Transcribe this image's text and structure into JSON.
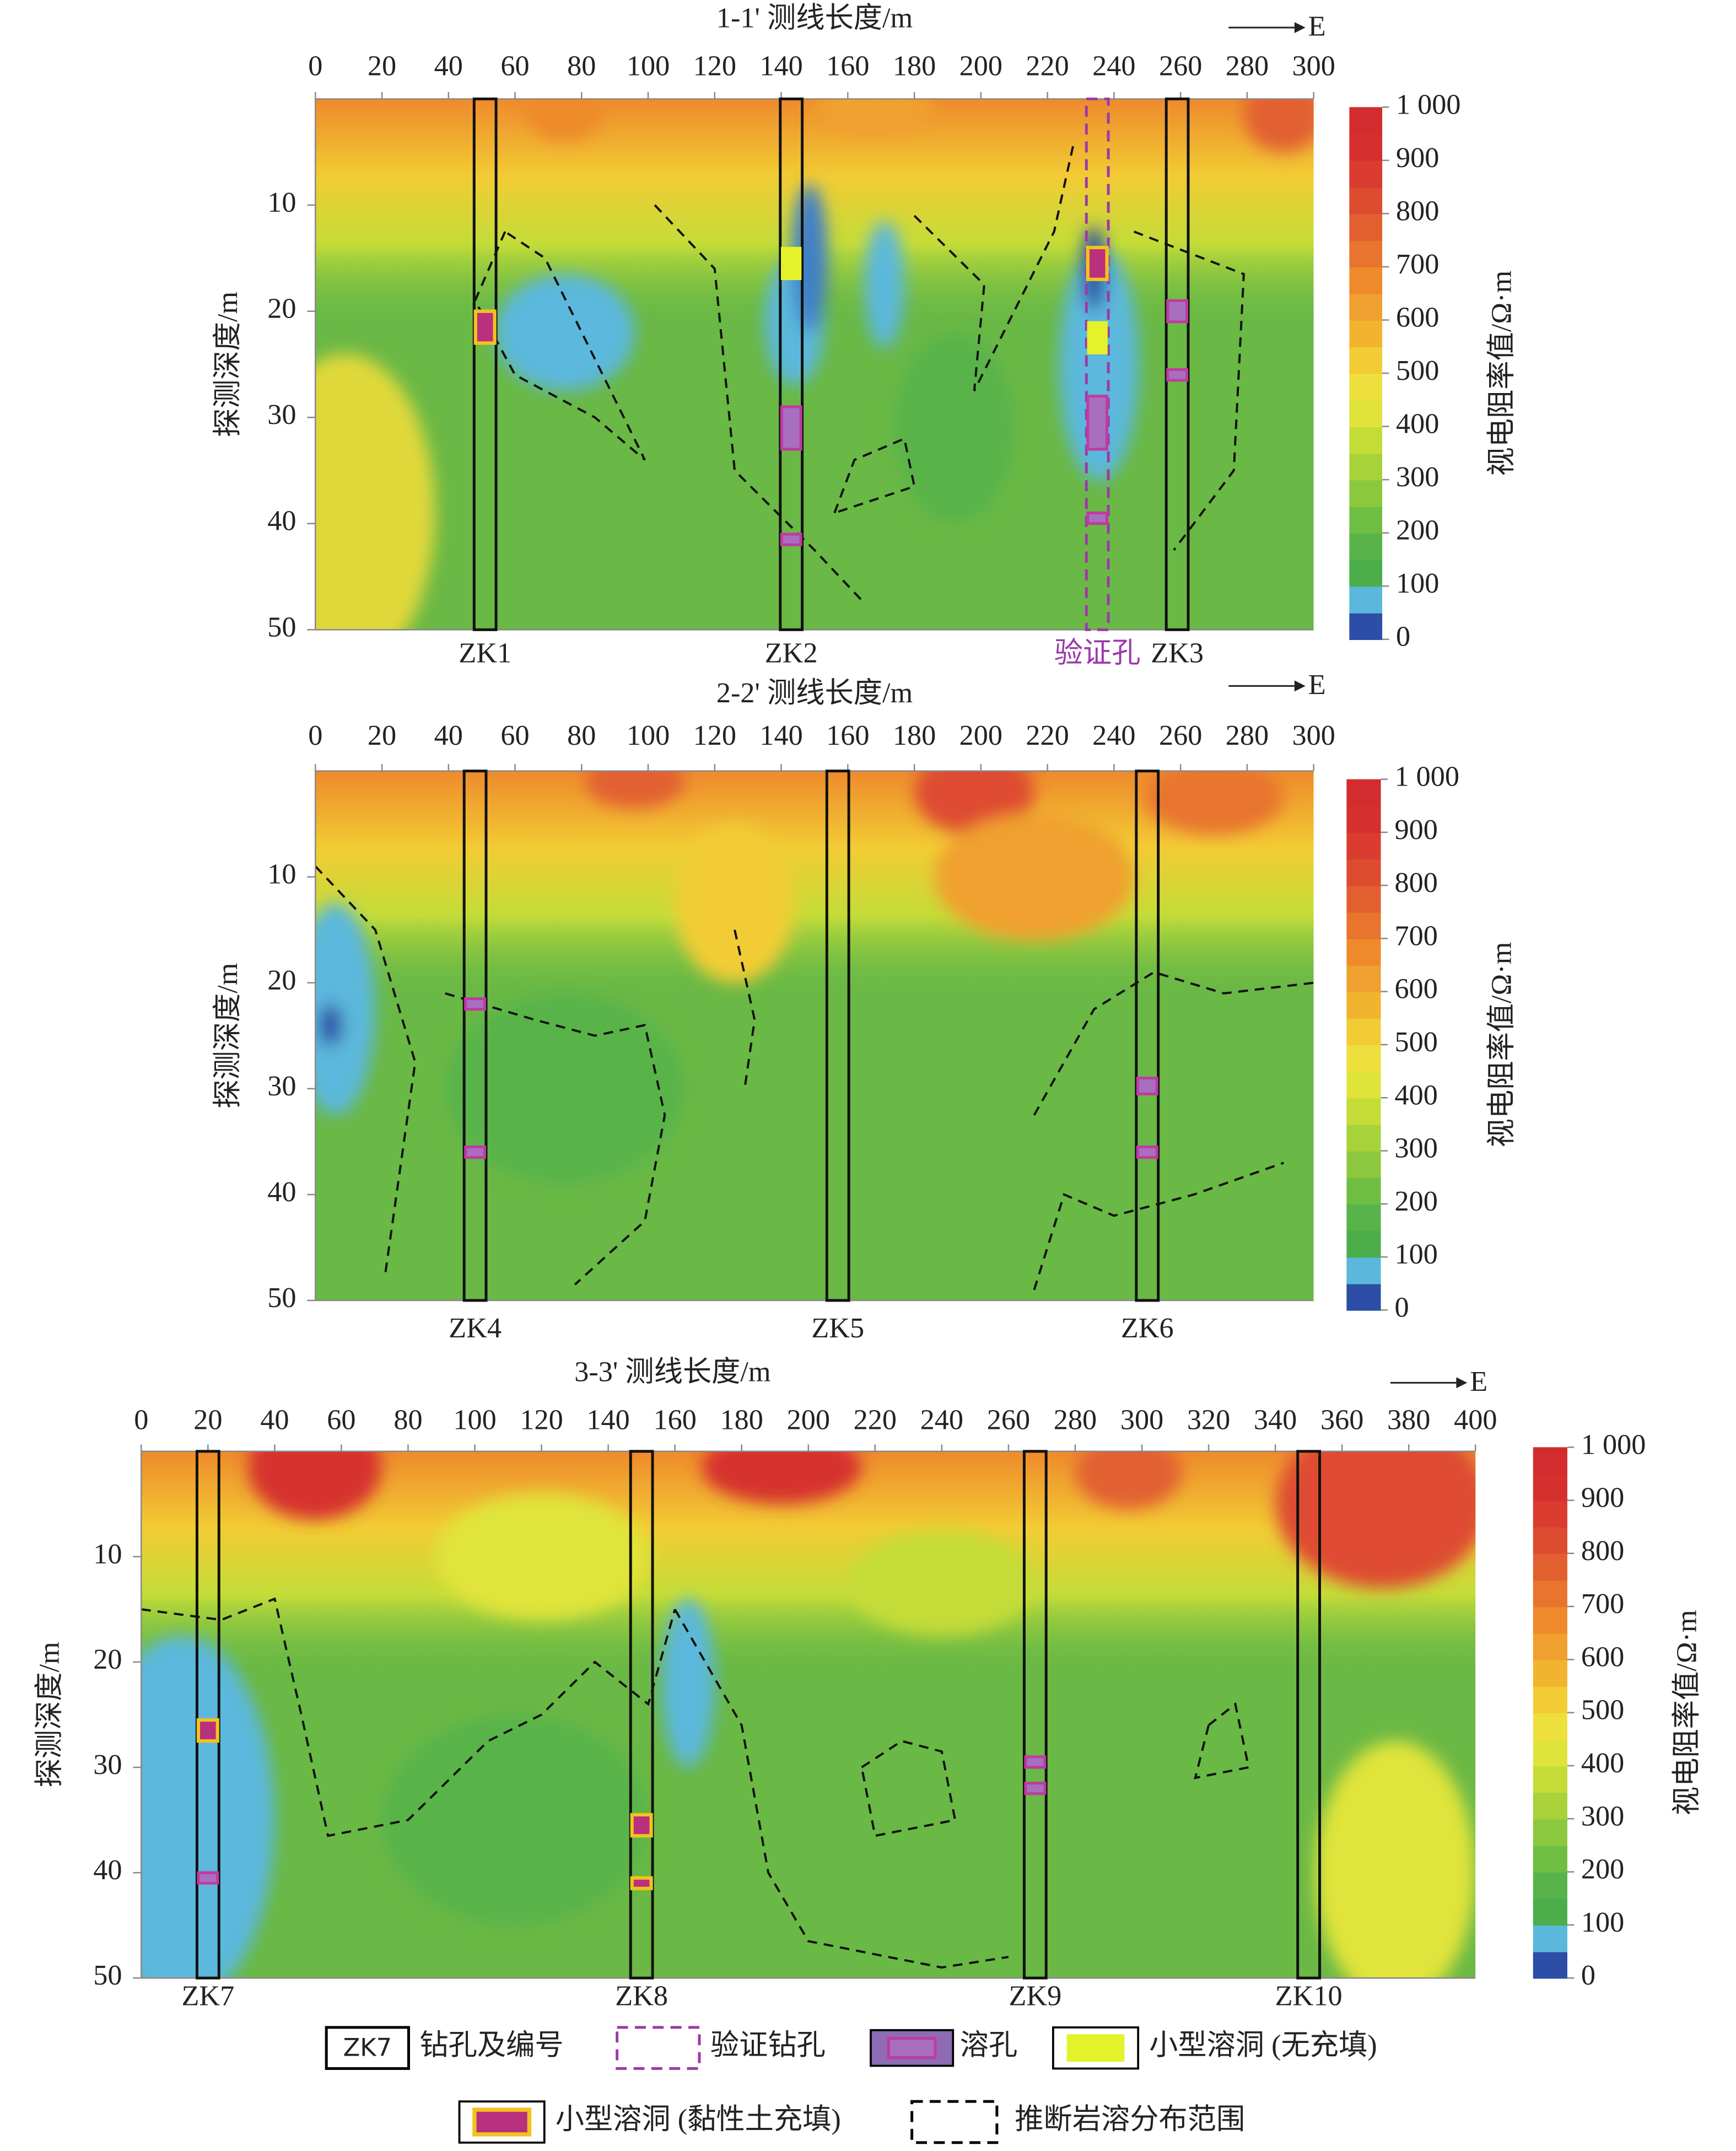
{
  "chart_data": [
    {
      "type": "contour",
      "title": "1-1' 测线长度/m",
      "direction": "E",
      "ylabel": "探测深度/m",
      "colorbar_label": "视电阻率值/Ω·m",
      "xlim": [
        0,
        300
      ],
      "xticks": [
        0,
        20,
        40,
        60,
        80,
        100,
        120,
        140,
        160,
        180,
        200,
        220,
        240,
        260,
        280,
        300
      ],
      "ylim": [
        0,
        50
      ],
      "yticks": [
        10,
        20,
        30,
        40,
        50
      ],
      "clim": [
        0,
        1000
      ],
      "cticks": [
        0,
        100,
        200,
        300,
        400,
        500,
        600,
        700,
        800,
        900,
        {
          "value": 1000,
          "label": "1 000"
        }
      ],
      "colorbar_colors": [
        "#2d4ea6",
        "#5bb8dc",
        "#4cae4a",
        "#58b44a",
        "#6ebe44",
        "#8cc83e",
        "#a8d23a",
        "#c4dc38",
        "#e0e43a",
        "#eee03c",
        "#f2cc34",
        "#f2b42e",
        "#f0a02e",
        "#ee8a2c",
        "#e8742e",
        "#e26030",
        "#de4c30",
        "#da3c30",
        "#d6302e",
        "#d22c2e"
      ],
      "boreholes": [
        {
          "name": "ZK1",
          "x": 51,
          "clay_cavities": [
            [
              20,
              23
            ]
          ]
        },
        {
          "name": "ZK2",
          "x": 143,
          "empty_cavities": [
            [
              14,
              17
            ]
          ],
          "solution_holes": [
            [
              29,
              33
            ],
            [
              41,
              42
            ]
          ]
        },
        {
          "name": "ZK3",
          "x": 259,
          "solution_holes": [
            [
              19,
              21
            ],
            [
              25.5,
              26.5
            ]
          ]
        }
      ],
      "verification_holes": [
        {
          "name": "验证孔",
          "x": 235,
          "clay_cavities": [
            [
              14,
              17
            ]
          ],
          "empty_cavities": [
            [
              21,
              24
            ]
          ],
          "solution_holes": [
            [
              28,
              33
            ],
            [
              39,
              40
            ]
          ]
        }
      ]
    },
    {
      "type": "contour",
      "title": "2-2' 测线长度/m",
      "direction": "E",
      "ylabel": "探测深度/m",
      "colorbar_label": "视电阻率值/Ω·m",
      "xlim": [
        0,
        300
      ],
      "xticks": [
        0,
        20,
        40,
        60,
        80,
        100,
        120,
        140,
        160,
        180,
        200,
        220,
        240,
        260,
        280,
        300
      ],
      "ylim": [
        0,
        50
      ],
      "yticks": [
        10,
        20,
        30,
        40,
        50
      ],
      "clim": [
        0,
        1000
      ],
      "cticks": [
        0,
        100,
        200,
        300,
        400,
        500,
        600,
        700,
        800,
        900,
        {
          "value": 1000,
          "label": "1 000"
        }
      ],
      "colorbar_colors": [
        "#2d4ea6",
        "#5bb8dc",
        "#4cae4a",
        "#58b44a",
        "#6ebe44",
        "#8cc83e",
        "#a8d23a",
        "#c4dc38",
        "#e0e43a",
        "#eee03c",
        "#f2cc34",
        "#f2b42e",
        "#f0a02e",
        "#ee8a2c",
        "#e8742e",
        "#e26030",
        "#de4c30",
        "#da3c30",
        "#d6302e",
        "#d22c2e"
      ],
      "boreholes": [
        {
          "name": "ZK4",
          "x": 48,
          "solution_holes": [
            [
              21.5,
              22.5
            ],
            [
              35.5,
              36.5
            ]
          ]
        },
        {
          "name": "ZK5",
          "x": 157
        },
        {
          "name": "ZK6",
          "x": 250,
          "solution_holes": [
            [
              29,
              30.5
            ],
            [
              35.5,
              36.5
            ]
          ]
        }
      ]
    },
    {
      "type": "contour",
      "title": "3-3' 测线长度/m",
      "direction": "E",
      "ylabel": "探测深度/m",
      "colorbar_label": "视电阻率值/Ω·m",
      "xlim": [
        0,
        400
      ],
      "xticks": [
        0,
        20,
        40,
        60,
        80,
        100,
        120,
        140,
        160,
        180,
        200,
        220,
        240,
        260,
        280,
        300,
        320,
        340,
        360,
        380,
        400
      ],
      "ylim": [
        0,
        50
      ],
      "yticks": [
        10,
        20,
        30,
        40,
        50
      ],
      "clim": [
        0,
        1000
      ],
      "cticks": [
        0,
        100,
        200,
        300,
        400,
        500,
        600,
        700,
        800,
        900,
        {
          "value": 1000,
          "label": "1 000"
        }
      ],
      "colorbar_colors": [
        "#2d4ea6",
        "#5bb8dc",
        "#4cae4a",
        "#58b44a",
        "#6ebe44",
        "#8cc83e",
        "#a8d23a",
        "#c4dc38",
        "#e0e43a",
        "#eee03c",
        "#f2cc34",
        "#f2b42e",
        "#f0a02e",
        "#ee8a2c",
        "#e8742e",
        "#e26030",
        "#de4c30",
        "#da3c30",
        "#d6302e",
        "#d22c2e"
      ],
      "boreholes": [
        {
          "name": "ZK7",
          "x": 20,
          "clay_cavities": [
            [
              25.5,
              27.5
            ]
          ],
          "solution_holes": [
            [
              40,
              41
            ]
          ]
        },
        {
          "name": "ZK8",
          "x": 150,
          "clay_cavities": [
            [
              34.5,
              36.5
            ],
            [
              40.5,
              41.5
            ]
          ]
        },
        {
          "name": "ZK9",
          "x": 268,
          "solution_holes": [
            [
              29,
              30
            ],
            [
              31.5,
              32.5
            ]
          ]
        },
        {
          "name": "ZK10",
          "x": 350
        }
      ]
    }
  ],
  "legend": [
    {
      "label": "钻孔及编号",
      "sample": "ZK7"
    },
    {
      "label": "验证钻孔"
    },
    {
      "label": "溶孔"
    },
    {
      "label": "小型溶洞 (无充填)"
    },
    {
      "label": "小型溶洞 (黏性土充填)"
    },
    {
      "label": "推断岩溶分布范围"
    }
  ]
}
